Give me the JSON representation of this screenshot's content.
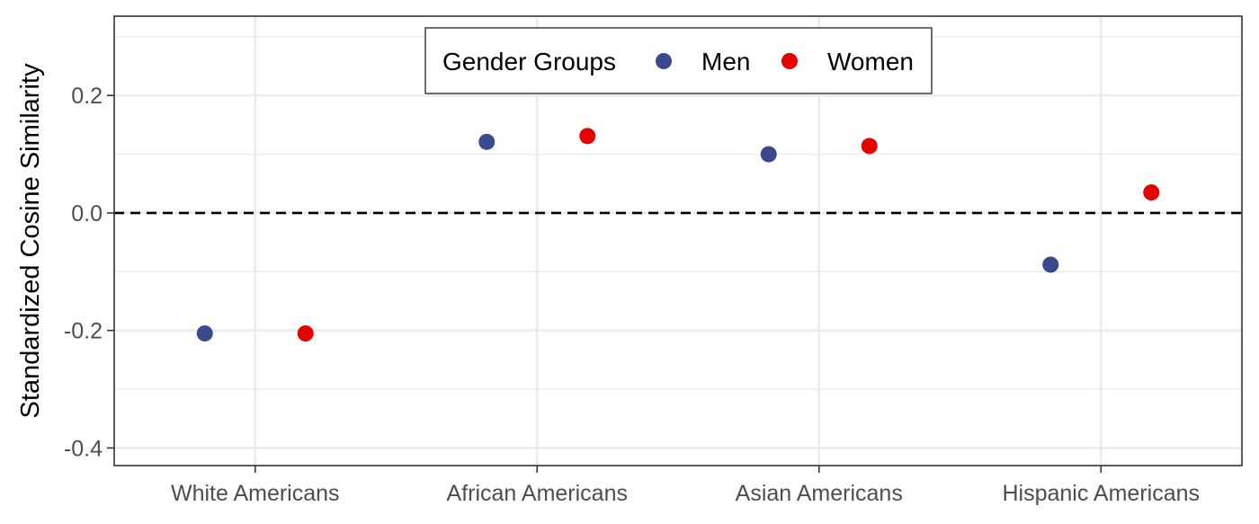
{
  "chart_data": {
    "type": "scatter",
    "title": "",
    "xlabel": "",
    "ylabel": "Standardized Cosine Similarity",
    "categories": [
      "White Americans",
      "African Americans",
      "Asian Americans",
      "Hispanic Americans"
    ],
    "ylim": [
      -0.43,
      0.335
    ],
    "yticks": [
      -0.4,
      -0.2,
      0.0,
      0.2
    ],
    "ytick_labels": [
      "-0.4",
      "-0.2",
      "0.0",
      "0.2"
    ],
    "reference_line": {
      "y": 0.0,
      "style": "dashed",
      "color": "#000000"
    },
    "grid": true,
    "legend": {
      "title": "Gender Groups",
      "placement": "top-center"
    },
    "series": [
      {
        "name": "Men",
        "color": "#3b4a8c",
        "values": [
          -0.205,
          0.121,
          0.1,
          -0.088
        ]
      },
      {
        "name": "Women",
        "color": "#e60000",
        "values": [
          -0.205,
          0.131,
          0.114,
          0.035
        ]
      }
    ]
  }
}
